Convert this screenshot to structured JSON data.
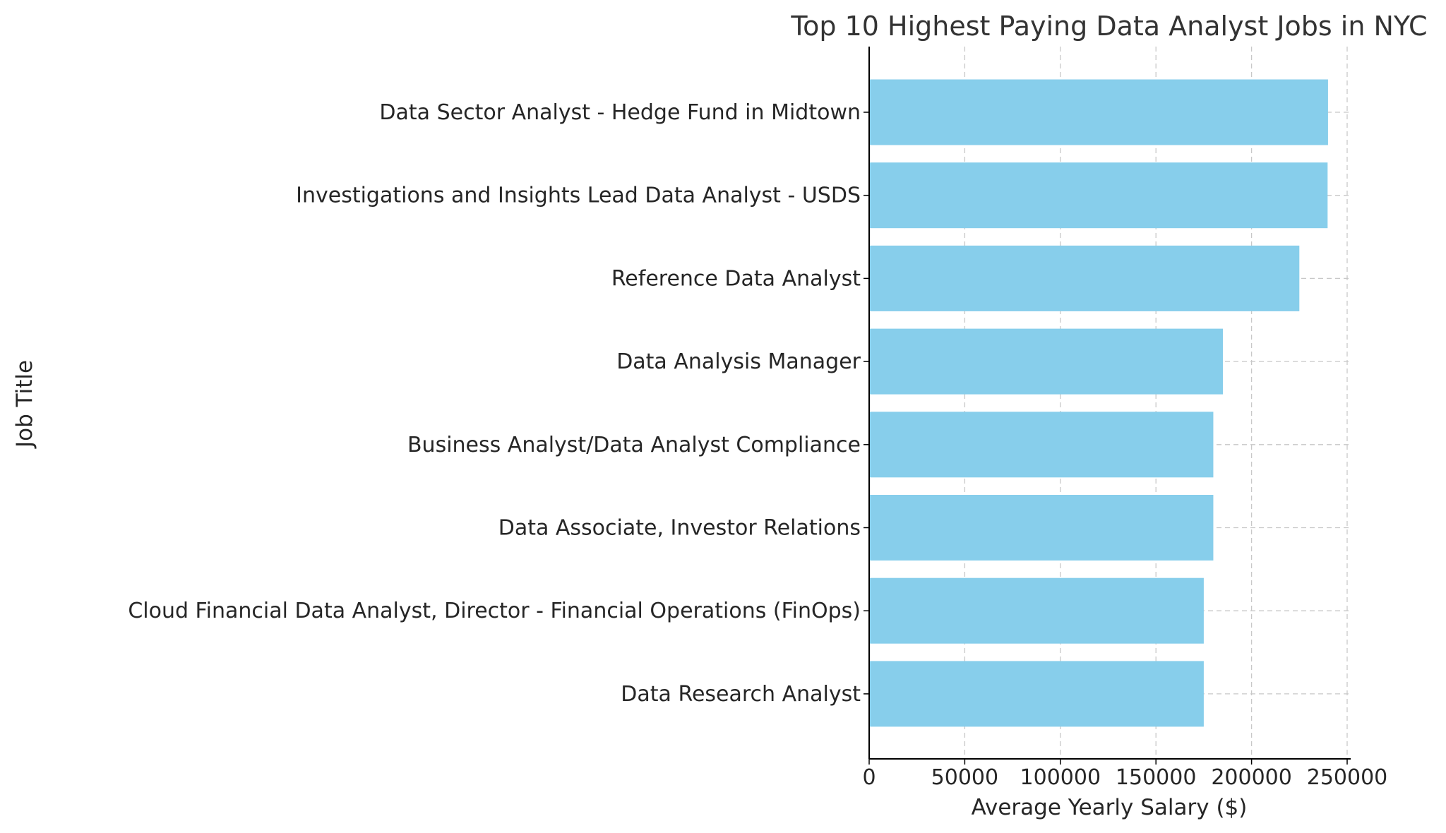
{
  "chart_data": {
    "type": "bar",
    "orientation": "horizontal",
    "title": "Top 10 Highest Paying Data Analyst Jobs in NYC",
    "xlabel": "Average Yearly Salary ($)",
    "ylabel": "Job Title",
    "categories": [
      "Data Sector Analyst - Hedge Fund in Midtown",
      "Investigations and Insights Lead Data Analyst - USDS",
      "Reference Data Analyst",
      "Data Analysis Manager",
      "Business Analyst/Data Analyst Compliance",
      "Data Associate, Investor Relations",
      "Cloud Financial Data Analyst, Director - Financial Operations (FinOps)",
      "Data Research Analyst"
    ],
    "values": [
      240000,
      239777,
      225000,
      185000,
      180000,
      180000,
      175000,
      175000
    ],
    "xlim": [
      0,
      250000
    ],
    "xticks": [
      "0",
      "50000",
      "100000",
      "150000",
      "200000",
      "250000"
    ],
    "bar_color": "#87ceeb",
    "grid": true
  }
}
